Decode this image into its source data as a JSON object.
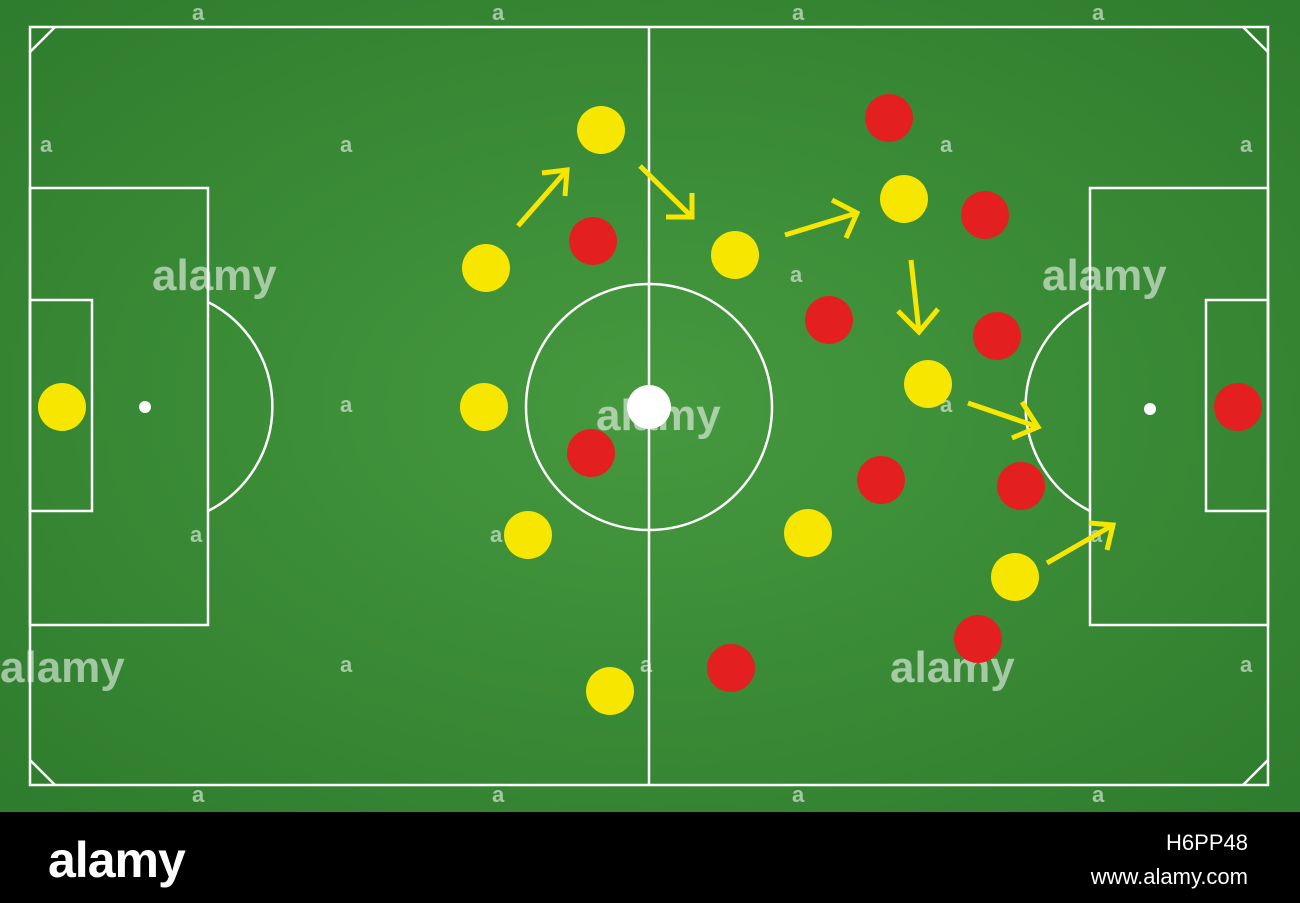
{
  "colors": {
    "grass": "#3f8f3c",
    "grass_dark": "#2f7a2e",
    "line": "#ffffff",
    "team_yellow": "#f7e600",
    "team_red": "#e3201f",
    "ball": "#ffffff",
    "arrow": "#f7e600",
    "footer_bg": "#000000"
  },
  "watermark": {
    "text": "alamy",
    "small_mark": "a"
  },
  "footer": {
    "brand": "alamy",
    "image_id": "H6PP48",
    "site": "www.alamy.com"
  },
  "team_yellow_count": 11,
  "team_red_count": 11,
  "arrow_count": 6,
  "icons": [
    "player-disc",
    "ball-disc",
    "movement-arrow"
  ]
}
